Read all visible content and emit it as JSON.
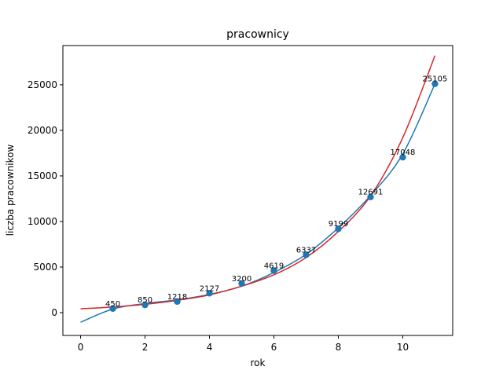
{
  "chart_data": {
    "type": "scatter",
    "title": "pracownicy",
    "xlabel": "rok",
    "ylabel": "liczba pracownikow",
    "xlim": [
      -0.55,
      11.55
    ],
    "ylim": [
      -2500,
      29300
    ],
    "grid": false,
    "x_ticks": [
      0,
      2,
      4,
      6,
      8,
      10
    ],
    "y_ticks": [
      0,
      5000,
      10000,
      15000,
      20000,
      25000
    ],
    "x_tick_labels": [
      "0",
      "2",
      "4",
      "6",
      "8",
      "10"
    ],
    "y_tick_labels": [
      "0",
      "5000",
      "10000",
      "15000",
      "20000",
      "25000"
    ],
    "points": {
      "x": [
        1,
        2,
        3,
        4,
        5,
        6,
        7,
        8,
        9,
        10,
        11
      ],
      "y": [
        450,
        850,
        1218,
        2127,
        3200,
        4619,
        6337,
        9199,
        12691,
        17048,
        25105
      ],
      "labels": [
        "450",
        "850",
        "1218",
        "2127",
        "3200",
        "4619",
        "6337",
        "9199",
        "12691",
        "17048",
        "25105"
      ],
      "color": "#1f77b4"
    },
    "series": [
      {
        "color": "#1f77b4",
        "x": [
          0,
          1,
          2,
          3,
          4,
          5,
          6,
          7,
          8,
          9,
          10,
          11
        ],
        "y": [
          -1050,
          400,
          1000,
          1400,
          2000,
          2900,
          4400,
          6400,
          9300,
          12850,
          17400,
          25105
        ]
      },
      {
        "color": "#d62728",
        "x": [
          0,
          1,
          2,
          3,
          4,
          5,
          6,
          7,
          8,
          9,
          10,
          11
        ],
        "y": [
          420,
          620,
          920,
          1350,
          1950,
          2900,
          4150,
          6050,
          8900,
          12800,
          19200,
          28200
        ]
      }
    ]
  }
}
